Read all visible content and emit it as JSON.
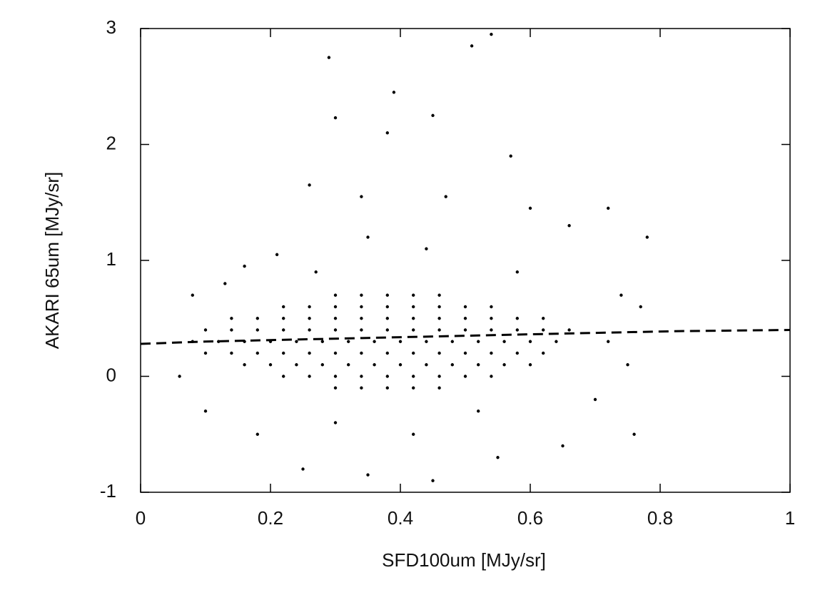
{
  "chart_data": {
    "type": "scatter",
    "xlabel": "SFD100um [MJy/sr]",
    "ylabel": "AKARI 65um [MJy/sr]",
    "xlim": [
      0,
      1
    ],
    "ylim": [
      -1,
      3
    ],
    "xticks": [
      0,
      0.2,
      0.4,
      0.6,
      0.8,
      1
    ],
    "yticks": [
      -1,
      0,
      1,
      2,
      3
    ],
    "series": [
      {
        "color": "#000000",
        "x": [
          0.3,
          0.34,
          0.38,
          0.42,
          0.46,
          0.22,
          0.26,
          0.3,
          0.34,
          0.38,
          0.42,
          0.46,
          0.5,
          0.54,
          0.14,
          0.18,
          0.22,
          0.26,
          0.3,
          0.34,
          0.38,
          0.42,
          0.46,
          0.5,
          0.54,
          0.58,
          0.62,
          0.1,
          0.14,
          0.18,
          0.22,
          0.26,
          0.3,
          0.34,
          0.38,
          0.42,
          0.46,
          0.5,
          0.54,
          0.58,
          0.62,
          0.66,
          0.08,
          0.12,
          0.16,
          0.2,
          0.24,
          0.28,
          0.32,
          0.36,
          0.4,
          0.44,
          0.48,
          0.52,
          0.56,
          0.6,
          0.64,
          0.1,
          0.14,
          0.18,
          0.22,
          0.26,
          0.3,
          0.34,
          0.38,
          0.42,
          0.46,
          0.5,
          0.54,
          0.58,
          0.62,
          0.16,
          0.2,
          0.24,
          0.28,
          0.32,
          0.36,
          0.4,
          0.44,
          0.48,
          0.52,
          0.56,
          0.6,
          0.22,
          0.26,
          0.3,
          0.34,
          0.38,
          0.42,
          0.46,
          0.5,
          0.54,
          0.3,
          0.34,
          0.38,
          0.42,
          0.46,
          0.29,
          0.39,
          0.38,
          0.54,
          0.51,
          0.45,
          0.57,
          0.3,
          0.26,
          0.34,
          0.47,
          0.6,
          0.66,
          0.72,
          0.21,
          0.16,
          0.78,
          0.74,
          0.77,
          0.72,
          0.75,
          0.7,
          0.76,
          0.65,
          0.55,
          0.45,
          0.35,
          0.25,
          0.18,
          0.1,
          0.06,
          0.08,
          0.13,
          0.42,
          0.3,
          0.52,
          0.58,
          0.44,
          0.35,
          0.27
        ],
        "y": [
          0.7,
          0.7,
          0.7,
          0.7,
          0.7,
          0.6,
          0.6,
          0.6,
          0.6,
          0.6,
          0.6,
          0.6,
          0.6,
          0.6,
          0.5,
          0.5,
          0.5,
          0.5,
          0.5,
          0.5,
          0.5,
          0.5,
          0.5,
          0.5,
          0.5,
          0.5,
          0.5,
          0.4,
          0.4,
          0.4,
          0.4,
          0.4,
          0.4,
          0.4,
          0.4,
          0.4,
          0.4,
          0.4,
          0.4,
          0.4,
          0.4,
          0.4,
          0.3,
          0.3,
          0.3,
          0.3,
          0.3,
          0.3,
          0.3,
          0.3,
          0.3,
          0.3,
          0.3,
          0.3,
          0.3,
          0.3,
          0.3,
          0.2,
          0.2,
          0.2,
          0.2,
          0.2,
          0.2,
          0.2,
          0.2,
          0.2,
          0.2,
          0.2,
          0.2,
          0.2,
          0.2,
          0.1,
          0.1,
          0.1,
          0.1,
          0.1,
          0.1,
          0.1,
          0.1,
          0.1,
          0.1,
          0.1,
          0.1,
          0,
          0,
          0,
          0,
          0,
          0,
          0,
          0,
          0,
          -0.1,
          -0.1,
          -0.1,
          -0.1,
          -0.1,
          2.75,
          2.45,
          2.1,
          2.95,
          2.85,
          2.25,
          1.9,
          2.23,
          1.65,
          1.55,
          1.55,
          1.45,
          1.3,
          1.45,
          1.05,
          0.95,
          1.2,
          0.7,
          0.6,
          0.3,
          0.1,
          -0.2,
          -0.5,
          -0.6,
          -0.7,
          -0.9,
          -0.85,
          -0.8,
          -0.5,
          -0.3,
          0.0,
          0.7,
          0.8,
          -0.5,
          -0.4,
          -0.3,
          0.9,
          1.1,
          1.2,
          0.9
        ]
      },
      {
        "type": "line",
        "style": "dashed",
        "color": "#000000",
        "x": [
          0,
          0.1,
          0.66,
          0.83,
          1
        ],
        "y": [
          0.28,
          0.3,
          0.37,
          0.39,
          0.4
        ]
      }
    ]
  }
}
